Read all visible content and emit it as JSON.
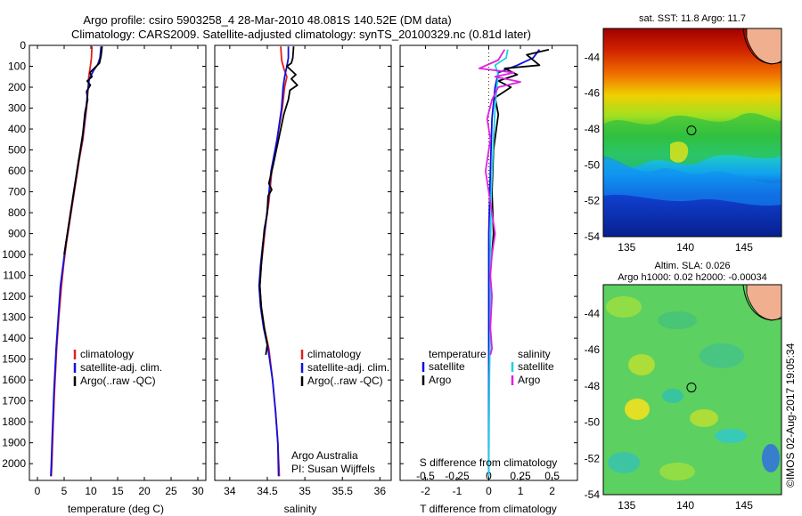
{
  "header": {
    "line1": "Argo profile: csiro 5903258_4 28-Mar-2010 48.081S 140.52E (DM data)",
    "line2": "Climatology: CARS2009. Satellite-adjusted climatology: synTS_20100329.nc (0.81d later)"
  },
  "colors": {
    "climatology": "#e02020",
    "satellite": "#1010e0",
    "argo": "#000000",
    "sat_s": "#20d0e0",
    "argo_s": "#e020e0"
  },
  "chart_data": [
    {
      "id": "temperature",
      "type": "line",
      "xlabel": "temperature (deg C)",
      "ylabel": "",
      "xlim": [
        -1.5,
        31.5
      ],
      "ylim": [
        2080,
        0
      ],
      "xticks": [
        "0",
        "5",
        "10",
        "15",
        "20",
        "25",
        "30"
      ],
      "yticks": [
        "0",
        "100",
        "200",
        "300",
        "400",
        "500",
        "600",
        "700",
        "800",
        "900",
        "1000",
        "1100",
        "1200",
        "1300",
        "1400",
        "1500",
        "1600",
        "1700",
        "1800",
        "1900",
        "2000"
      ],
      "legend": [
        "climatology",
        "satellite-adj. clim.",
        "Argo(..raw -QC)"
      ],
      "series": [
        {
          "name": "climatology",
          "color": "#e02020",
          "points": [
            [
              10.2,
              5
            ],
            [
              10.1,
              60
            ],
            [
              9.9,
              100
            ],
            [
              9.6,
              150
            ],
            [
              9.5,
              200
            ],
            [
              9.2,
              300
            ],
            [
              8.5,
              450
            ],
            [
              7.8,
              550
            ],
            [
              7.2,
              650
            ],
            [
              6.6,
              750
            ],
            [
              6.0,
              850
            ],
            [
              5.4,
              950
            ],
            [
              4.9,
              1050
            ],
            [
              4.5,
              1150
            ],
            [
              4.0,
              1300
            ],
            [
              3.6,
              1450
            ],
            [
              3.2,
              1650
            ],
            [
              2.9,
              1850
            ],
            [
              2.7,
              2000
            ],
            [
              2.6,
              2060
            ]
          ]
        },
        {
          "name": "satellite-adj. clim.",
          "color": "#1010e0",
          "points": [
            [
              11.9,
              5
            ],
            [
              11.7,
              60
            ],
            [
              11.3,
              90
            ],
            [
              10.5,
              120
            ],
            [
              9.7,
              160
            ],
            [
              9.4,
              220
            ],
            [
              9.1,
              300
            ],
            [
              8.4,
              450
            ],
            [
              7.7,
              550
            ],
            [
              7.1,
              650
            ],
            [
              6.5,
              750
            ],
            [
              5.9,
              850
            ],
            [
              5.3,
              950
            ],
            [
              4.8,
              1050
            ],
            [
              4.3,
              1150
            ],
            [
              3.9,
              1300
            ],
            [
              3.5,
              1450
            ],
            [
              3.1,
              1650
            ],
            [
              2.8,
              1850
            ],
            [
              2.6,
              2000
            ],
            [
              2.5,
              2060
            ]
          ]
        },
        {
          "name": "Argo",
          "color": "#000000",
          "points": [
            [
              12.1,
              5
            ],
            [
              11.9,
              50
            ],
            [
              11.6,
              85
            ],
            [
              10.6,
              110
            ],
            [
              9.8,
              130
            ],
            [
              10.2,
              150
            ],
            [
              9.3,
              170
            ],
            [
              9.9,
              190
            ],
            [
              9.2,
              220
            ],
            [
              9.4,
              260
            ],
            [
              8.9,
              320
            ],
            [
              8.5,
              420
            ],
            [
              7.9,
              520
            ],
            [
              7.3,
              620
            ],
            [
              6.8,
              700
            ],
            [
              6.2,
              800
            ],
            [
              5.6,
              900
            ],
            [
              5.0,
              1000
            ]
          ]
        }
      ]
    },
    {
      "id": "salinity",
      "type": "line",
      "xlabel": "salinity",
      "ylabel": "",
      "xlim": [
        33.8,
        36.15
      ],
      "ylim": [
        2080,
        0
      ],
      "xticks": [
        "34",
        "34.5",
        "35",
        "35.5",
        "36"
      ],
      "legend": [
        "climatology",
        "satellite-adj. clim.",
        "Argo(..raw -QC)"
      ],
      "annotation": [
        "Argo Australia",
        "PI: Susan Wijffels"
      ],
      "series": [
        {
          "name": "climatology",
          "color": "#e02020",
          "points": [
            [
              34.68,
              5
            ],
            [
              34.69,
              70
            ],
            [
              34.72,
              110
            ],
            [
              34.76,
              150
            ],
            [
              34.73,
              200
            ],
            [
              34.7,
              300
            ],
            [
              34.63,
              450
            ],
            [
              34.56,
              600
            ],
            [
              34.52,
              750
            ],
            [
              34.48,
              850
            ],
            [
              34.45,
              950
            ],
            [
              34.42,
              1050
            ],
            [
              34.4,
              1150
            ],
            [
              34.42,
              1250
            ],
            [
              34.46,
              1350
            ],
            [
              34.52,
              1450
            ],
            [
              34.57,
              1600
            ],
            [
              34.61,
              1750
            ],
            [
              34.64,
              1900
            ],
            [
              34.66,
              2060
            ]
          ]
        },
        {
          "name": "satellite-adj. clim.",
          "color": "#1010e0",
          "points": [
            [
              34.78,
              5
            ],
            [
              34.78,
              60
            ],
            [
              34.76,
              100
            ],
            [
              34.73,
              150
            ],
            [
              34.71,
              200
            ],
            [
              34.69,
              300
            ],
            [
              34.63,
              450
            ],
            [
              34.55,
              600
            ],
            [
              34.51,
              750
            ],
            [
              34.48,
              850
            ],
            [
              34.44,
              950
            ],
            [
              34.41,
              1050
            ],
            [
              34.39,
              1150
            ],
            [
              34.41,
              1250
            ],
            [
              34.45,
              1350
            ],
            [
              34.51,
              1450
            ],
            [
              34.57,
              1600
            ],
            [
              34.61,
              1750
            ],
            [
              34.64,
              1900
            ],
            [
              34.65,
              2060
            ]
          ]
        },
        {
          "name": "Argo",
          "color": "#000000",
          "points": [
            [
              34.85,
              5
            ],
            [
              34.84,
              60
            ],
            [
              34.82,
              85
            ],
            [
              34.76,
              100
            ],
            [
              34.88,
              140
            ],
            [
              34.82,
              160
            ],
            [
              34.9,
              190
            ],
            [
              34.8,
              215
            ],
            [
              34.78,
              260
            ],
            [
              34.72,
              330
            ],
            [
              34.65,
              450
            ],
            [
              34.58,
              570
            ],
            [
              34.52,
              660
            ],
            [
              34.56,
              690
            ],
            [
              34.51,
              720
            ],
            [
              34.5,
              800
            ],
            [
              34.46,
              880
            ],
            [
              34.44,
              960
            ],
            [
              34.42,
              1050
            ],
            [
              34.4,
              1150
            ],
            [
              34.42,
              1250
            ],
            [
              34.46,
              1350
            ],
            [
              34.5,
              1430
            ],
            [
              34.48,
              1480
            ]
          ]
        }
      ]
    },
    {
      "id": "difference",
      "type": "line",
      "xlabel": "T difference from climatology",
      "xlabel_top": "S difference from climatology",
      "xlim": [
        -2.8,
        2.8
      ],
      "ylim": [
        2080,
        0
      ],
      "xticks_bottom": [
        "-2",
        "-1",
        "0",
        "1",
        "2"
      ],
      "xticks_top": [
        "-0.5",
        "-0.25",
        "0",
        "0.25",
        "0.5"
      ],
      "legend": {
        "temperature": [
          "satellite",
          "Argo"
        ],
        "salinity": [
          "satellite",
          "Argo"
        ],
        "temperature_title": "temperature",
        "salinity_title": "salinity"
      },
      "series": [
        {
          "name": "T satellite",
          "color": "#1010e0",
          "points": [
            [
              1.6,
              20
            ],
            [
              1.4,
              60
            ],
            [
              0.9,
              95
            ],
            [
              0.3,
              130
            ],
            [
              0.2,
              200
            ],
            [
              0.1,
              350
            ],
            [
              0.05,
              600
            ],
            [
              0.0,
              900
            ],
            [
              0.0,
              1200
            ],
            [
              0.0,
              1600
            ],
            [
              0.0,
              2060
            ]
          ]
        },
        {
          "name": "T Argo",
          "color": "#000000",
          "points": [
            [
              1.9,
              20
            ],
            [
              1.2,
              45
            ],
            [
              1.6,
              95
            ],
            [
              0.5,
              110
            ],
            [
              0.9,
              140
            ],
            [
              0.3,
              170
            ],
            [
              0.7,
              200
            ],
            [
              0.2,
              250
            ],
            [
              0.3,
              330
            ],
            [
              0.15,
              500
            ],
            [
              0.1,
              700
            ],
            [
              0.15,
              900
            ],
            [
              0.1,
              1000
            ]
          ]
        },
        {
          "name": "S satellite",
          "color": "#20d0e0",
          "points": [
            [
              0.6,
              20
            ],
            [
              0.55,
              60
            ],
            [
              0.2,
              95
            ],
            [
              0.3,
              140
            ],
            [
              0.25,
              200
            ],
            [
              0.2,
              300
            ],
            [
              0.15,
              450
            ],
            [
              0.08,
              700
            ],
            [
              0.05,
              1000
            ],
            [
              0.05,
              1300
            ],
            [
              0.02,
              1600
            ],
            [
              0.0,
              2060
            ]
          ]
        },
        {
          "name": "S Argo",
          "color": "#e020e0",
          "points": [
            [
              0.5,
              20
            ],
            [
              0.3,
              70
            ],
            [
              -0.3,
              110
            ],
            [
              0.8,
              130
            ],
            [
              0.2,
              150
            ],
            [
              1.0,
              175
            ],
            [
              0.3,
              200
            ],
            [
              0.1,
              260
            ],
            [
              -0.05,
              350
            ],
            [
              0.05,
              450
            ],
            [
              -0.1,
              600
            ],
            [
              0.0,
              700
            ],
            [
              0.2,
              900
            ],
            [
              0.1,
              1000
            ],
            [
              0.05,
              1100
            ],
            [
              0.1,
              1200
            ],
            [
              0.05,
              1350
            ],
            [
              0.1,
              1450
            ],
            [
              0.05,
              1480
            ]
          ]
        }
      ]
    },
    {
      "id": "sst_map",
      "type": "heatmap",
      "title": "sat. SST: 11.8  Argo: 11.7",
      "xlim": [
        133,
        148.2
      ],
      "ylim": [
        -54,
        -42.4
      ],
      "xticks": [
        "135",
        "140",
        "145"
      ],
      "yticks": [
        "-44",
        "-46",
        "-48",
        "-50",
        "-52",
        "-54"
      ],
      "float_position": [
        140.52,
        -48.08
      ]
    },
    {
      "id": "sla_map",
      "type": "heatmap",
      "title": "Altim. SLA: 0.026",
      "subtitle": "Argo h1000: 0.02  h2000: -0.00034",
      "xlim": [
        133,
        148.2
      ],
      "ylim": [
        -54,
        -42.4
      ],
      "xticks": [
        "135",
        "140",
        "145"
      ],
      "yticks": [
        "-44",
        "-46",
        "-48",
        "-50",
        "-52",
        "-54"
      ],
      "float_position": [
        140.52,
        -48.08
      ]
    }
  ],
  "footer": {
    "credit": "©IMOS 02-Aug-2017 19:05:34"
  }
}
